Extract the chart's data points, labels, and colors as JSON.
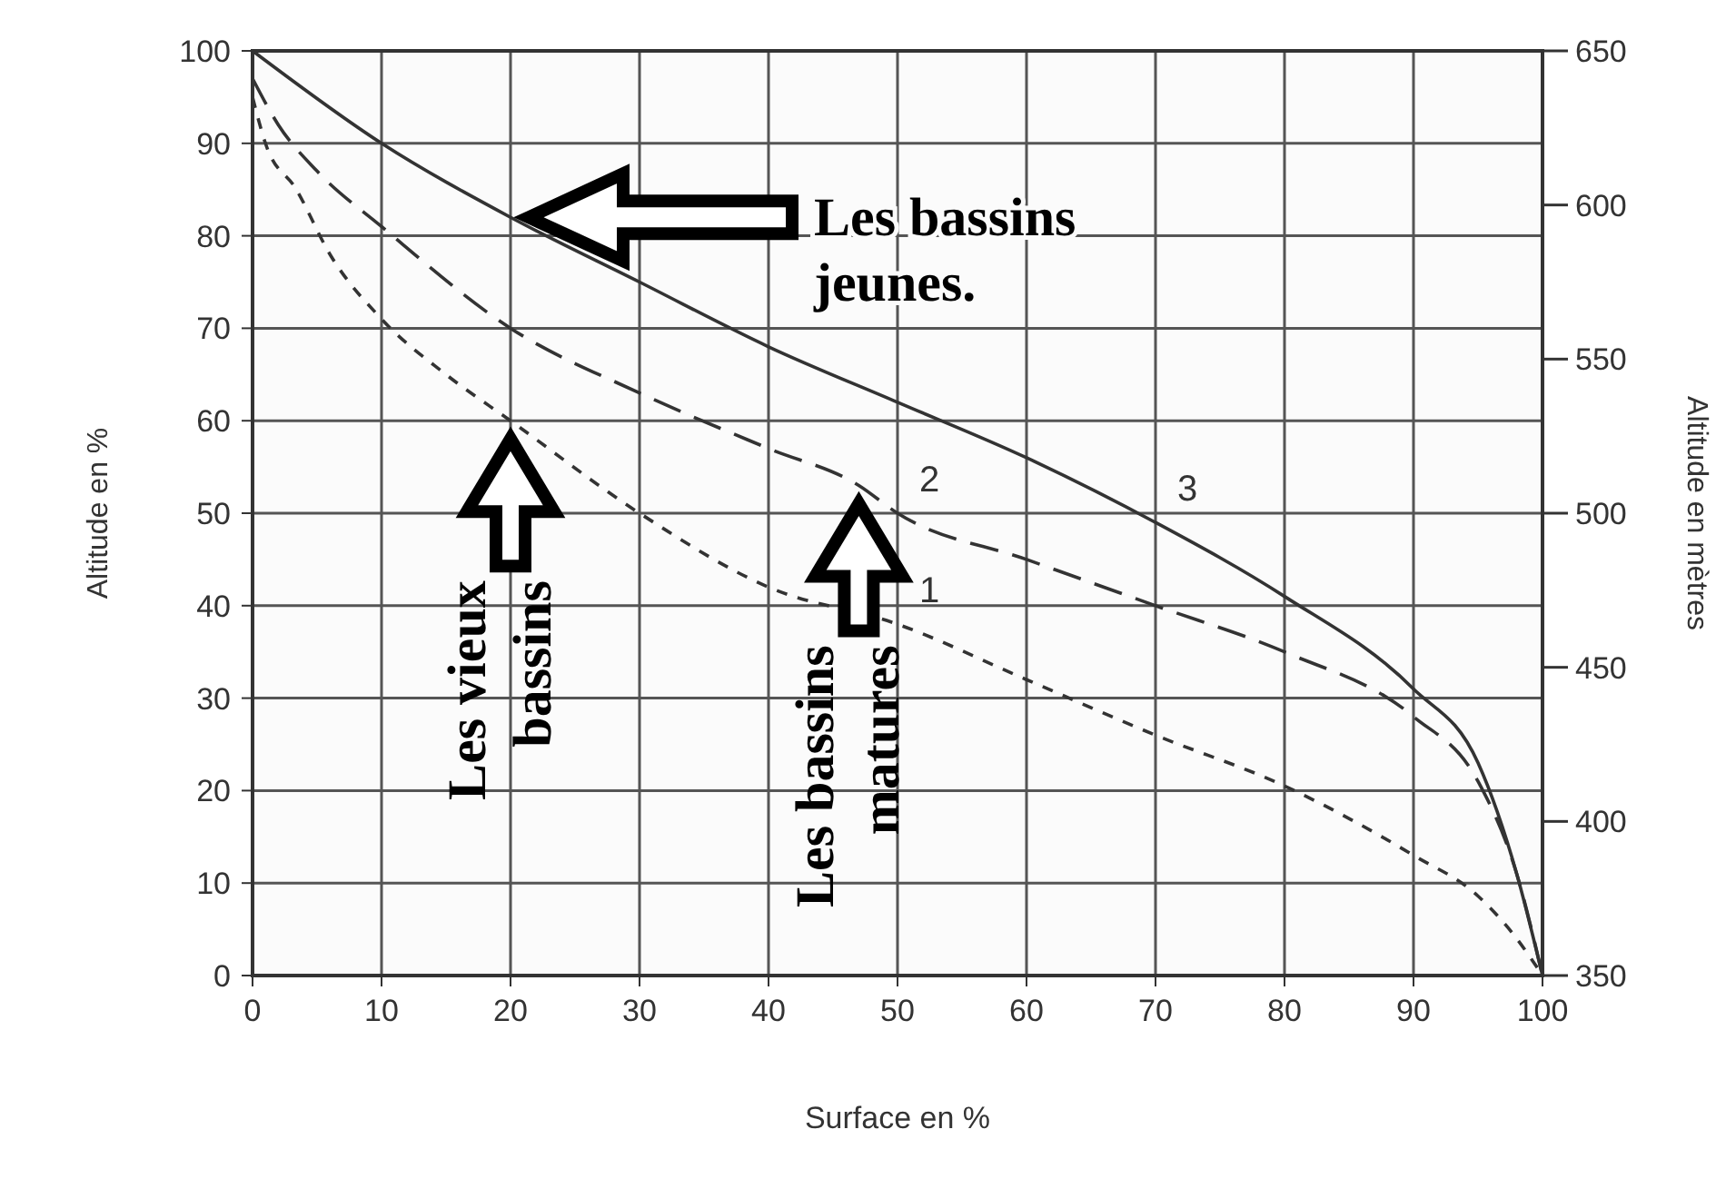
{
  "chart_data": {
    "type": "line",
    "xlabel": "Surface en %",
    "ylabel": "Altitude en %",
    "y2label": "Altitude en mètres",
    "xlim": [
      0,
      100
    ],
    "xticks": [
      0,
      10,
      20,
      30,
      40,
      50,
      60,
      70,
      80,
      90,
      100
    ],
    "ylim": [
      0,
      100
    ],
    "yticks": [
      0,
      10,
      20,
      30,
      40,
      50,
      60,
      70,
      80,
      90,
      100
    ],
    "y2lim": [
      350,
      650
    ],
    "y2ticks": [
      350,
      400,
      450,
      500,
      550,
      600,
      650
    ],
    "grid": true,
    "series": [
      {
        "name": "1",
        "color": "#333333",
        "line_style": "dotted",
        "x": [
          0,
          1,
          3.4,
          6,
          10,
          15,
          20,
          30,
          40,
          50,
          60,
          70,
          80,
          90,
          95,
          98,
          100
        ],
        "values": [
          95,
          90,
          85,
          78,
          71,
          65,
          60,
          50,
          42,
          38,
          32,
          26,
          20.5,
          13,
          8.6,
          4,
          0
        ]
      },
      {
        "name": "2",
        "color": "#333333",
        "line_style": "dashed",
        "x": [
          0,
          2,
          5,
          10,
          20,
          30,
          40,
          47,
          50,
          60,
          70,
          80,
          90,
          95,
          98,
          100
        ],
        "values": [
          97,
          92,
          87,
          81,
          70,
          63,
          57,
          53,
          50,
          45,
          40,
          35,
          28,
          21,
          11,
          0
        ]
      },
      {
        "name": "3",
        "color": "#333333",
        "line_style": "solid",
        "x": [
          0,
          10,
          20,
          30,
          40,
          50,
          60,
          70,
          80,
          90,
          95,
          98,
          100
        ],
        "values": [
          100,
          90,
          82,
          75,
          68,
          62,
          56,
          49,
          41,
          31,
          23,
          11,
          0
        ]
      }
    ],
    "annotations": [
      "Les bassins\njeunes.",
      {
        "text": "Les vieux\nbassins",
        "x": 20,
        "y": 60
      },
      {
        "text": "Les bassins\nmatures",
        "x": 47,
        "y": 53
      }
    ]
  }
}
